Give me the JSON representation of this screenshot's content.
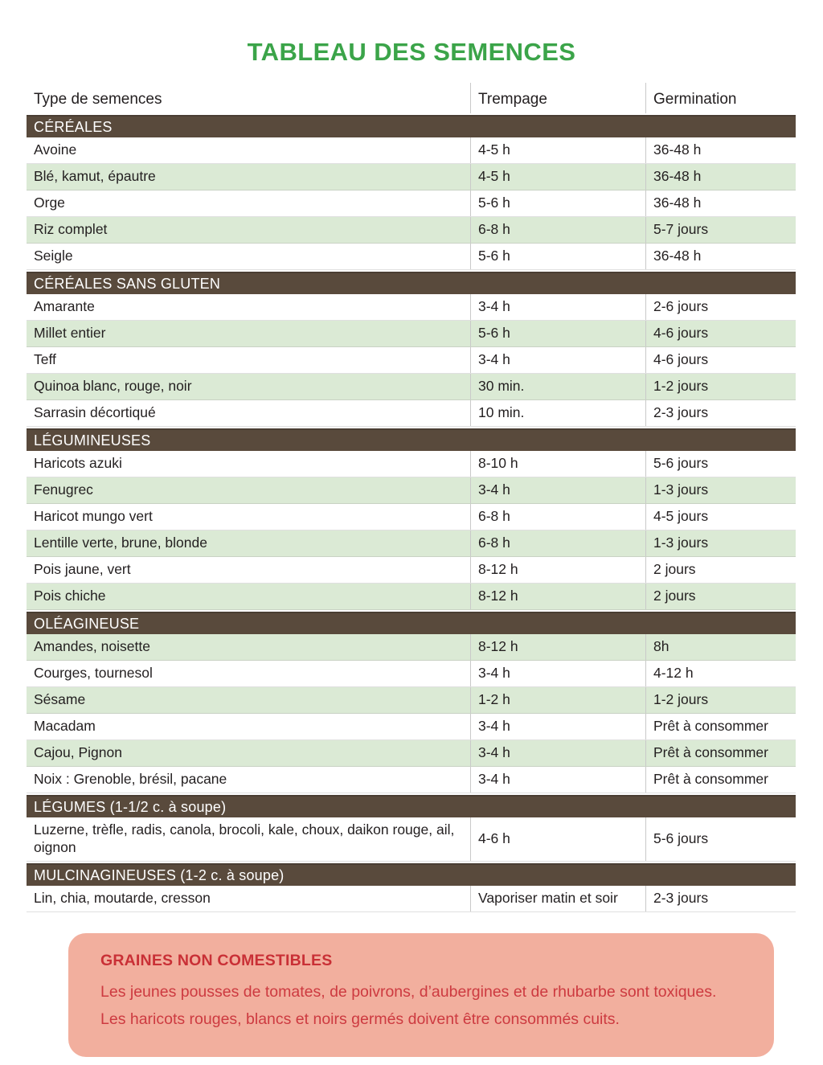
{
  "title": "TABLEAU DES SEMENCES",
  "colors": {
    "title_green": "#3ba449",
    "section_brown": "#594a3c",
    "row_green": "#dbead5",
    "warning_background": "#f2af9e",
    "warning_red": "#cd3a40"
  },
  "table": {
    "columns": [
      "Type de semences",
      "Trempage",
      "Germination"
    ],
    "sections": [
      {
        "header": "CÉRÉALES",
        "rows": [
          {
            "name": "Avoine",
            "trempage": "4-5 h",
            "germination": "36-48 h",
            "shaded": false
          },
          {
            "name": "Blé, kamut, épautre",
            "trempage": "4-5 h",
            "germination": "36-48 h",
            "shaded": true
          },
          {
            "name": "Orge",
            "trempage": "5-6 h",
            "germination": "36-48 h",
            "shaded": false
          },
          {
            "name": "Riz complet",
            "trempage": "6-8 h",
            "germination": "5-7 jours",
            "shaded": true
          },
          {
            "name": "Seigle",
            "trempage": "5-6 h",
            "germination": "36-48 h",
            "shaded": false
          }
        ]
      },
      {
        "header": "CÉRÉALES SANS GLUTEN",
        "rows": [
          {
            "name": "Amarante",
            "trempage": "3-4 h",
            "germination": "2-6 jours",
            "shaded": false
          },
          {
            "name": "Millet entier",
            "trempage": "5-6 h",
            "germination": "4-6 jours",
            "shaded": true
          },
          {
            "name": "Teff",
            "trempage": "3-4 h",
            "germination": "4-6 jours",
            "shaded": false
          },
          {
            "name": "Quinoa blanc, rouge, noir",
            "trempage": "30 min.",
            "germination": "1-2 jours",
            "shaded": true
          },
          {
            "name": "Sarrasin décortiqué",
            "trempage": "10 min.",
            "germination": "2-3 jours",
            "shaded": false
          }
        ]
      },
      {
        "header": "LÉGUMINEUSES",
        "rows": [
          {
            "name": "Haricots azuki",
            "trempage": "8-10 h",
            "germination": "5-6 jours",
            "shaded": false
          },
          {
            "name": "Fenugrec",
            "trempage": "3-4 h",
            "germination": "1-3 jours",
            "shaded": true
          },
          {
            "name": "Haricot mungo vert",
            "trempage": "6-8 h",
            "germination": "4-5 jours",
            "shaded": false
          },
          {
            "name": "Lentille verte, brune, blonde",
            "trempage": "6-8 h",
            "germination": "1-3 jours",
            "shaded": true
          },
          {
            "name": "Pois jaune, vert",
            "trempage": "8-12 h",
            "germination": "2 jours",
            "shaded": false
          },
          {
            "name": "Pois chiche",
            "trempage": "8-12 h",
            "germination": "2 jours",
            "shaded": true
          }
        ]
      },
      {
        "header": "OLÉAGINEUSE",
        "rows": [
          {
            "name": "Amandes, noisette",
            "trempage": "8-12 h",
            "germination": "8h",
            "shaded": true
          },
          {
            "name": "Courges, tournesol",
            "trempage": "3-4 h",
            "germination": "4-12 h",
            "shaded": false
          },
          {
            "name": "Sésame",
            "trempage": "1-2 h",
            "germination": "1-2 jours",
            "shaded": true
          },
          {
            "name": "Macadam",
            "trempage": "3-4 h",
            "germination": "Prêt à consommer",
            "shaded": false
          },
          {
            "name": "Cajou, Pignon",
            "trempage": "3-4 h",
            "germination": "Prêt à consommer",
            "shaded": true
          },
          {
            "name": "Noix : Grenoble, brésil, pacane",
            "trempage": "3-4 h",
            "germination": "Prêt à consommer",
            "shaded": false
          }
        ]
      },
      {
        "header": "LÉGUMES (1-1/2 c. à soupe)",
        "rows": [
          {
            "name": "Luzerne, trèfle, radis, canola, brocoli, kale, choux, daikon rouge, ail, oignon",
            "trempage": "4-6 h",
            "germination": "5-6 jours",
            "shaded": false
          }
        ]
      },
      {
        "header": "MULCINAGINEUSES (1-2 c. à soupe)",
        "rows": [
          {
            "name": "Lin, chia, moutarde, cresson",
            "trempage": "Vaporiser matin et soir",
            "germination": "2-3 jours",
            "shaded": false
          }
        ]
      }
    ]
  },
  "warning": {
    "title": "GRAINES NON COMESTIBLES",
    "lines": [
      "Les jeunes pousses de tomates, de poivrons, d’aubergines et de rhubarbe sont toxiques.",
      "Les haricots rouges, blancs et noirs germés doivent être consommés cuits."
    ]
  }
}
